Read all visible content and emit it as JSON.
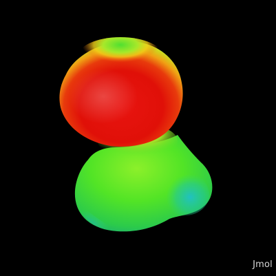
{
  "viewer": {
    "background": "#000000",
    "watermark": "Jmol",
    "surface_colors": {
      "red": "#e8120c",
      "orange": "#f57a10",
      "yellow": "#e8e81a",
      "green": "#3ee628",
      "cyan": "#22c8b4"
    }
  }
}
